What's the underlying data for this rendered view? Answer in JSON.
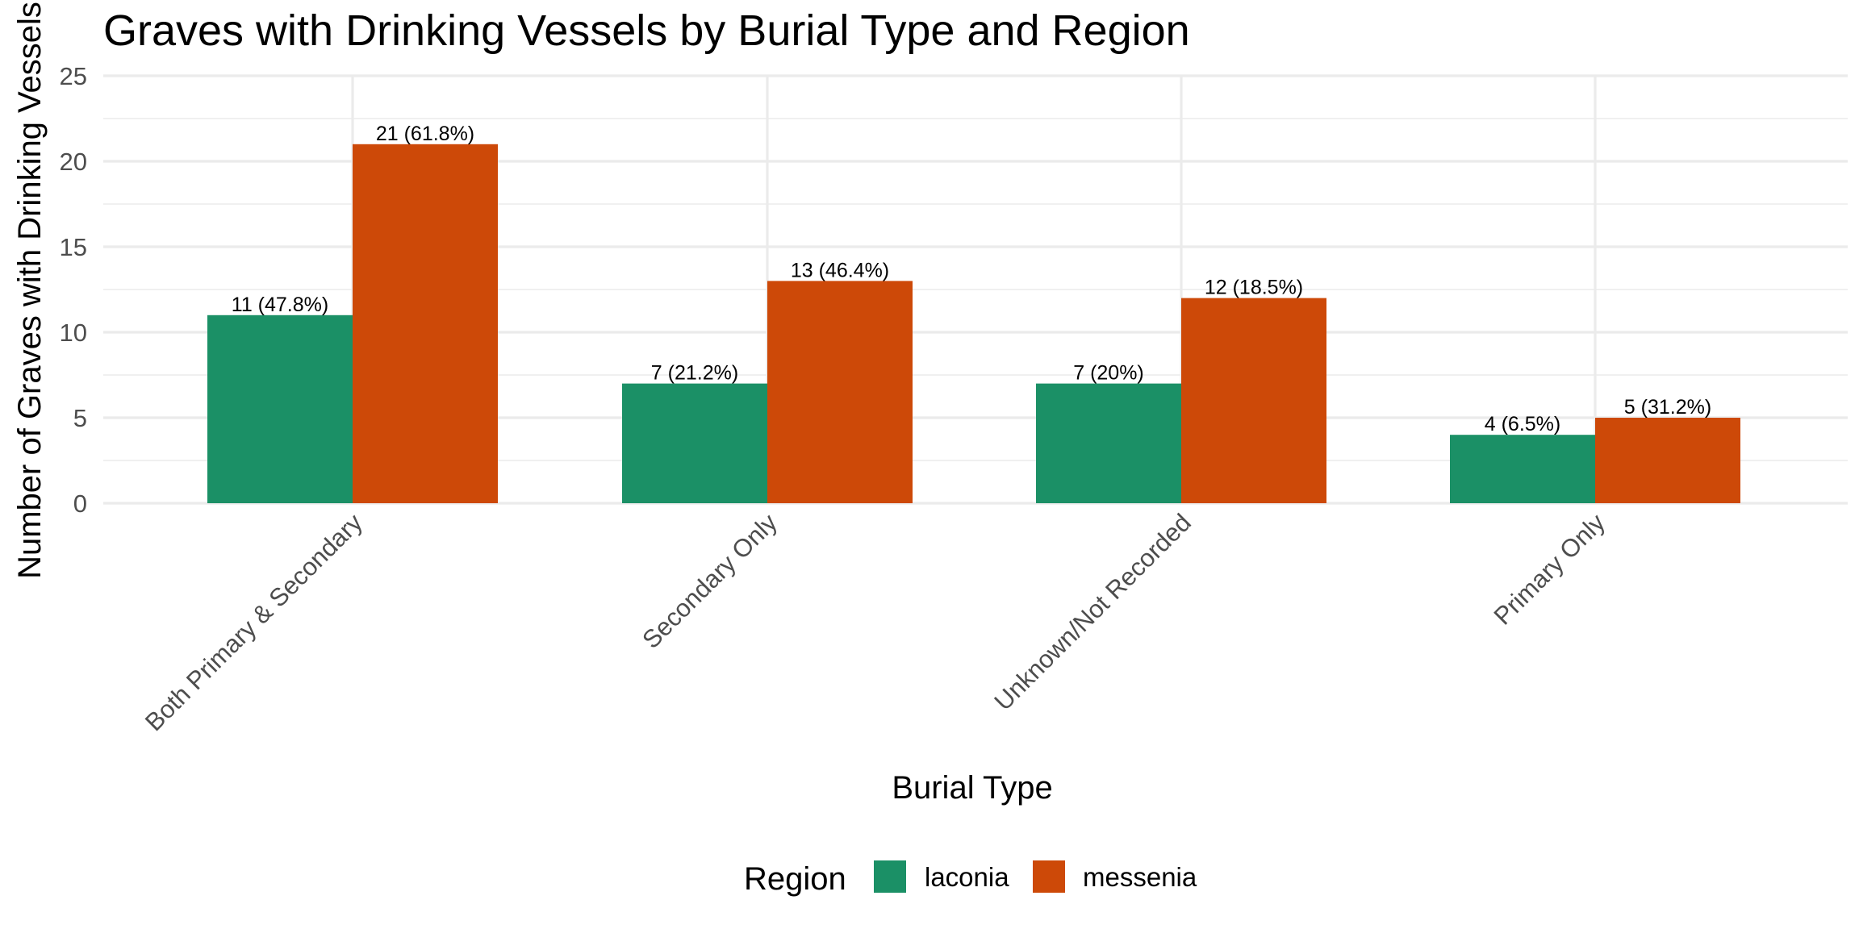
{
  "chart_data": {
    "type": "bar",
    "title": "Graves with Drinking Vessels by Burial Type and Region",
    "xlabel": "Burial Type",
    "ylabel": "Number of Graves with Drinking Vessels",
    "categories": [
      "Both Primary & Secondary",
      "Secondary Only",
      "Unknown/Not Recorded",
      "Primary Only"
    ],
    "series": [
      {
        "name": "laconia",
        "color": "#1b9066",
        "values": [
          11,
          7,
          7,
          4
        ],
        "labels": [
          "11 (47.8%)",
          "7 (21.2%)",
          "7 (20%)",
          "4 (6.5%)"
        ]
      },
      {
        "name": "messenia",
        "color": "#cd4908",
        "values": [
          21,
          13,
          12,
          5
        ],
        "labels": [
          "21 (61.8%)",
          "13 (46.4%)",
          "12 (18.5%)",
          "5 (31.2%)"
        ]
      }
    ],
    "ylim": [
      0,
      25
    ],
    "yticks": [
      0,
      5,
      10,
      15,
      20,
      25
    ],
    "grid": true,
    "legend": {
      "title": "Region",
      "position": "bottom"
    }
  }
}
